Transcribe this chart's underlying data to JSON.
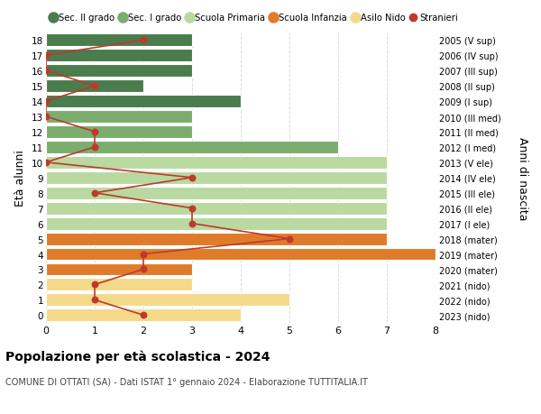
{
  "ages": [
    18,
    17,
    16,
    15,
    14,
    13,
    12,
    11,
    10,
    9,
    8,
    7,
    6,
    5,
    4,
    3,
    2,
    1,
    0
  ],
  "years": [
    "2005 (V sup)",
    "2006 (IV sup)",
    "2007 (III sup)",
    "2008 (II sup)",
    "2009 (I sup)",
    "2010 (III med)",
    "2011 (II med)",
    "2012 (I med)",
    "2013 (V ele)",
    "2014 (IV ele)",
    "2015 (III ele)",
    "2016 (II ele)",
    "2017 (I ele)",
    "2018 (mater)",
    "2019 (mater)",
    "2020 (mater)",
    "2021 (nido)",
    "2022 (nido)",
    "2023 (nido)"
  ],
  "bar_values": [
    3,
    3,
    3,
    2,
    4,
    3,
    3,
    6,
    7,
    7,
    7,
    7,
    7,
    7,
    8,
    3,
    3,
    5,
    4
  ],
  "bar_colors": [
    "#4a7c4e",
    "#4a7c4e",
    "#4a7c4e",
    "#4a7c4e",
    "#4a7c4e",
    "#7aad6e",
    "#7aad6e",
    "#7aad6e",
    "#b8d9a0",
    "#b8d9a0",
    "#b8d9a0",
    "#b8d9a0",
    "#b8d9a0",
    "#e07b2a",
    "#e07b2a",
    "#e07b2a",
    "#f5d98b",
    "#f5d98b",
    "#f5d98b"
  ],
  "stranieri_values": [
    2,
    0,
    0,
    1,
    0,
    0,
    1,
    1,
    0,
    3,
    1,
    3,
    3,
    5,
    2,
    2,
    1,
    1,
    2
  ],
  "xlim": [
    0,
    8
  ],
  "ylim": [
    -0.5,
    18.5
  ],
  "ylabel_left": "Età alunni",
  "ylabel_right": "Anni di nascita",
  "title": "Popolazione per età scolastica - 2024",
  "subtitle": "COMUNE DI OTTATI (SA) - Dati ISTAT 1° gennaio 2024 - Elaborazione TUTTITALIA.IT",
  "legend_labels": [
    "Sec. II grado",
    "Sec. I grado",
    "Scuola Primaria",
    "Scuola Infanzia",
    "Asilo Nido",
    "Stranieri"
  ],
  "legend_colors": [
    "#4a7c4e",
    "#7aad6e",
    "#b8d9a0",
    "#e07b2a",
    "#f5d98b",
    "#c0392b"
  ],
  "stranieri_color": "#c0392b",
  "bar_height": 0.82,
  "background_color": "#ffffff",
  "grid_color": "#dddddd",
  "xticks": [
    0,
    1,
    2,
    3,
    4,
    5,
    6,
    7,
    8
  ]
}
